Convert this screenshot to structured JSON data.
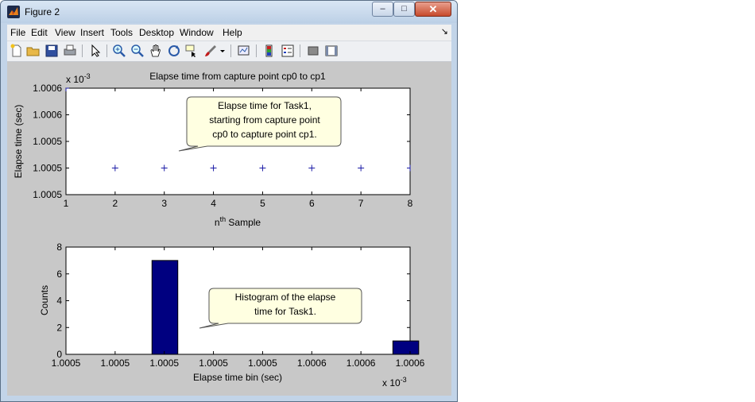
{
  "window": {
    "title": "Figure 2",
    "buttons": {
      "minimize": "–",
      "maximize": "□",
      "close": "✕"
    },
    "menu_items": [
      "File",
      "Edit",
      "View",
      "Insert",
      "Tools",
      "Desktop",
      "Window",
      "Help"
    ],
    "menu_overflow": "↘"
  },
  "toolbar": {
    "icons": [
      "new-figure-icon",
      "open-file-icon",
      "save-icon",
      "print-icon",
      "pointer-icon",
      "zoom-in-icon",
      "zoom-out-icon",
      "pan-hand-icon",
      "rotate-3d-icon",
      "data-cursor-icon",
      "brush-icon",
      "brush-dropdown-icon",
      "link-plot-icon",
      "colorbar-icon",
      "legend-icon",
      "hide-plot-tools-icon",
      "show-plot-tools-icon"
    ]
  },
  "chart_data": [
    {
      "type": "scatter",
      "title": "Elapse time from capture point cp0 to cp1",
      "xlabel_base": "n",
      "xlabel_sup": "th",
      "xlabel_rest": " Sample",
      "ylabel": "Elapse time (sec)",
      "exponent_base": "x 10",
      "exponent_power": "-3",
      "xlim": [
        1,
        8
      ],
      "xticks": [
        "1",
        "2",
        "3",
        "4",
        "5",
        "6",
        "7",
        "8"
      ],
      "yticks": [
        "1.0006",
        "1.0006",
        "1.0005",
        "1.0005",
        "1.0005"
      ],
      "x": [
        1,
        2,
        3,
        4,
        5,
        6,
        7,
        8
      ],
      "y_level": [
        1.0,
        0.25,
        0.25,
        0.25,
        0.25,
        0.25,
        0.25,
        0.25
      ],
      "marker": "+",
      "color": "#1a1aa6",
      "annotation": [
        "Elapse time for Task1,",
        "starting from capture point",
        "cp0 to capture point cp1."
      ]
    },
    {
      "type": "bar",
      "xlabel": "Elapse time bin (sec)",
      "ylabel": "Counts",
      "exponent_base": "x 10",
      "exponent_power": "-3",
      "ylim": [
        0,
        8
      ],
      "yticks": [
        "0",
        "2",
        "4",
        "6",
        "8"
      ],
      "xticks": [
        "1.0005",
        "1.0005",
        "1.0005",
        "1.0005",
        "1.0005",
        "1.0006",
        "1.0006",
        "1.0006"
      ],
      "bins": [
        {
          "pos": 0.25,
          "width": 0.075,
          "value": 7
        },
        {
          "pos": 0.95,
          "width": 0.075,
          "value": 1
        }
      ],
      "color": "#000080",
      "annotation": [
        "Histogram of the elapse",
        "time for Task1."
      ]
    }
  ]
}
